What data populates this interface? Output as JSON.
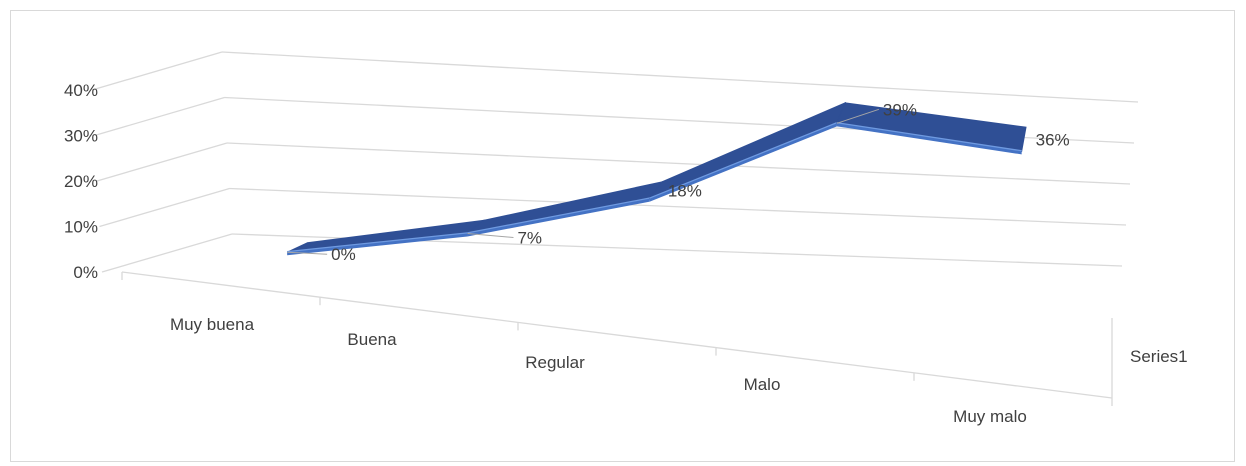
{
  "chart_data": {
    "type": "line",
    "style": "3d",
    "categories": [
      "Muy buena",
      "Buena",
      "Regular",
      "Malo",
      "Muy malo"
    ],
    "series": [
      {
        "name": "Series1",
        "values": [
          0,
          7,
          18,
          39,
          36
        ],
        "data_labels": [
          "0%",
          "7%",
          "18%",
          "39%",
          "36%"
        ]
      }
    ],
    "y_ticks": [
      "0%",
      "10%",
      "20%",
      "30%",
      "40%"
    ],
    "ylim": [
      0,
      40
    ],
    "grid": true,
    "legend": "none",
    "colors": {
      "ribbon_top": "#2f4f95",
      "ribbon_front": "#4472c4",
      "ribbon_edge": "#6f9ae0",
      "grid": "#d9d9d9",
      "text": "#404040"
    }
  }
}
